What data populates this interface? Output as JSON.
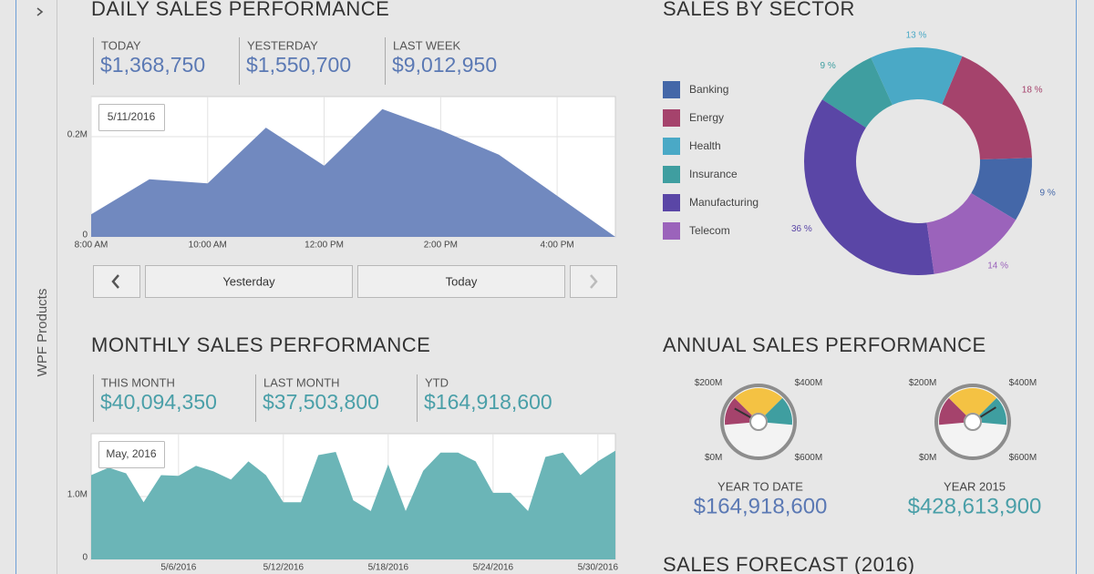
{
  "sidebar": {
    "label": "WPF Products"
  },
  "daily": {
    "title": "DAILY SALES PERFORMANCE",
    "kpis": [
      {
        "label": "TODAY",
        "value": "$1,368,750"
      },
      {
        "label": "YESTERDAY",
        "value": "$1,550,700"
      },
      {
        "label": "LAST WEEK",
        "value": "$9,012,950"
      }
    ],
    "kpi_color": "#5b79b4",
    "chart": {
      "type": "area",
      "tooltip": "5/11/2016",
      "color": "#7189bf",
      "grid": true,
      "x": [
        8,
        9,
        10,
        11,
        12,
        13,
        14,
        15,
        16,
        17
      ],
      "values": [
        45000,
        115000,
        107000,
        218000,
        142000,
        255000,
        213000,
        164000,
        82000,
        0
      ],
      "xlim": [
        8,
        17
      ],
      "xticks": [
        {
          "value": 8,
          "label": "8:00 AM"
        },
        {
          "value": 10,
          "label": "10:00 AM"
        },
        {
          "value": 12,
          "label": "12:00 PM"
        },
        {
          "value": 14,
          "label": "2:00 PM"
        },
        {
          "value": 16,
          "label": "4:00 PM"
        }
      ],
      "ylim": [
        0,
        280000
      ],
      "yticks": [
        0,
        {
          "value": 200000,
          "label": "0.2M"
        }
      ]
    },
    "buttons": [
      "Yesterday",
      "Today"
    ]
  },
  "monthly": {
    "title": "MONTHLY SALES PERFORMANCE",
    "kpis": [
      {
        "label": "THIS MONTH",
        "value": "$40,094,350"
      },
      {
        "label": "LAST MONTH",
        "value": "$37,503,800"
      },
      {
        "label": "YTD",
        "value": "$164,918,600"
      }
    ],
    "kpi_color": "#4a9fa8",
    "chart": {
      "type": "area",
      "tooltip": "May, 2016",
      "color": "#6bb5b7",
      "grid": true,
      "x": [
        "5/1/2016",
        "5/2/2016",
        "5/3/2016",
        "5/4/2016",
        "5/5/2016",
        "5/6/2016",
        "5/7/2016",
        "5/8/2016",
        "5/9/2016",
        "5/10/2016",
        "5/11/2016",
        "5/12/2016",
        "5/13/2016",
        "5/14/2016",
        "5/15/2016",
        "5/16/2016",
        "5/17/2016",
        "5/18/2016",
        "5/19/2016",
        "5/20/2016",
        "5/21/2016",
        "5/22/2016",
        "5/23/2016",
        "5/24/2016",
        "5/25/2016",
        "5/26/2016",
        "5/27/2016",
        "5/28/2016",
        "5/29/2016",
        "5/30/2016",
        "5/31/2016"
      ],
      "values": [
        1340000,
        1460000,
        1370000,
        910000,
        1340000,
        1330000,
        1490000,
        1400000,
        1270000,
        1560000,
        1340000,
        910000,
        910000,
        1660000,
        1710000,
        940000,
        770000,
        1510000,
        770000,
        1410000,
        1700000,
        1700000,
        1560000,
        1060000,
        1060000,
        770000,
        1630000,
        1700000,
        1340000,
        1560000,
        1730000
      ],
      "xticks": [
        "5/6/2016",
        "5/12/2016",
        "5/18/2016",
        "5/24/2016",
        "5/30/2016"
      ],
      "ylim": [
        0,
        2000000
      ],
      "yticks": [
        0,
        {
          "value": 1000000,
          "label": "1.0M"
        }
      ]
    }
  },
  "sector": {
    "title": "SALES BY SECTOR",
    "chart": {
      "type": "donut",
      "categories": [
        "Banking",
        "Energy",
        "Health",
        "Insurance",
        "Manufacturing",
        "Telecom"
      ],
      "values": [
        9,
        18,
        13,
        9,
        36,
        14
      ],
      "value_labels": [
        "9 %",
        "18 %",
        "13 %",
        "9 %",
        "36 %",
        "14 %"
      ],
      "colors": [
        "#4467a8",
        "#a5436c",
        "#4aa9c6",
        "#3f9ea0",
        "#5a46a6",
        "#9b63bb"
      ]
    }
  },
  "annual": {
    "title": "ANNUAL SALES PERFORMANCE",
    "gauges": [
      {
        "type": "gauge",
        "label": "YEAR TO DATE",
        "value": 164918600,
        "value_label": "$164,918,600",
        "color": "#5b79b4",
        "ylim": [
          0,
          600000000
        ],
        "yticks": [
          {
            "value": 0,
            "label": "$0M"
          },
          {
            "value": 200000000,
            "label": "$200M"
          },
          {
            "value": 400000000,
            "label": "$400M"
          },
          {
            "value": 600000000,
            "label": "$600M"
          }
        ],
        "band_colors": [
          "#a5436c",
          "#f4c243",
          "#3f9ea0"
        ]
      },
      {
        "type": "gauge",
        "label": "YEAR 2015",
        "value": 428613900,
        "value_label": "$428,613,900",
        "color": "#4a9fa8",
        "ylim": [
          0,
          600000000
        ],
        "yticks": [
          {
            "value": 0,
            "label": "$0M"
          },
          {
            "value": 200000000,
            "label": "$200M"
          },
          {
            "value": 400000000,
            "label": "$400M"
          },
          {
            "value": 600000000,
            "label": "$600M"
          }
        ],
        "band_colors": [
          "#a5436c",
          "#f4c243",
          "#3f9ea0"
        ]
      }
    ]
  },
  "forecast": {
    "title": "SALES FORECAST (2016)"
  }
}
